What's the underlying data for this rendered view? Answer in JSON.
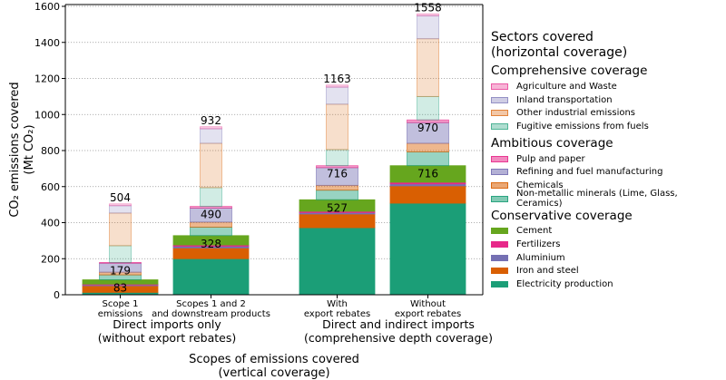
{
  "chart_data": {
    "type": "bar",
    "subtype": "stacked-nested",
    "ylabel_line1": "CO₂ emissions covered",
    "ylabel_line2": "(Mt CO₂)",
    "xlabel_line1": "Scopes of emissions covered",
    "xlabel_line2": "(vertical coverage)",
    "ylim": [
      0,
      1600
    ],
    "yticks": [
      0,
      200,
      400,
      600,
      800,
      1000,
      1200,
      1400,
      1600
    ],
    "grid": "horizontal-dotted",
    "categories": [
      {
        "line1": "Scope 1",
        "line2": "emissions"
      },
      {
        "line1": "Scopes 1 and 2",
        "line2": "and downstream products"
      },
      {
        "line1": "With",
        "line2": "export rebates"
      },
      {
        "line1": "Without",
        "line2": "export rebates"
      }
    ],
    "groups": [
      {
        "line1": "Direct imports only",
        "line2": "(without export rebates)"
      },
      {
        "line1": "Direct and indirect imports",
        "line2": "(comprehensive depth coverage)"
      }
    ],
    "coverage_levels": [
      {
        "name": "Conservative coverage",
        "totals": [
          83,
          328,
          527,
          716
        ],
        "series": [
          {
            "name": "Electricity production",
            "color": "#1b9e77",
            "values": [
              13,
              200,
              372,
              508
            ]
          },
          {
            "name": "Iron and steel",
            "color": "#d95f02",
            "values": [
              37,
              60,
              76,
              96
            ]
          },
          {
            "name": "Aluminium",
            "color": "#7570b3",
            "values": [
              5,
              9,
              8,
              11
            ]
          },
          {
            "name": "Fertilizers",
            "color": "#e7298a",
            "values": [
              4,
              7,
              7,
              9
            ]
          },
          {
            "name": "Cement",
            "color": "#66a61e",
            "values": [
              24,
              52,
              64,
              92
            ]
          }
        ]
      },
      {
        "name": "Ambitious coverage",
        "totals": [
          179,
          490,
          716,
          970
        ],
        "series": [
          {
            "name": "Non-metallic minerals (Lime, Glass, Ceramics)",
            "color": "#1b9e77",
            "values": [
              27,
              47,
              53,
              76
            ]
          },
          {
            "name": "Chemicals",
            "color": "#d95f02",
            "values": [
              15,
              28,
              27,
              48
            ]
          },
          {
            "name": "Refining and fuel manufacturing",
            "color": "#7570b3",
            "values": [
              50,
              78,
              98,
              115
            ]
          },
          {
            "name": "Pulp and paper",
            "color": "#e7298a",
            "values": [
              4,
              9,
              11,
              15
            ]
          }
        ]
      },
      {
        "name": "Comprehensive coverage",
        "totals": [
          504,
          932,
          1163,
          1558
        ],
        "series": [
          {
            "name": "Fugitive emissions from fuels",
            "color": "#1b9e77",
            "values": [
              93,
              104,
              89,
              130
            ]
          },
          {
            "name": "Other industrial emissions",
            "color": "#d95f02",
            "values": [
              181,
              246,
              252,
              320
            ]
          },
          {
            "name": "Inland transportation",
            "color": "#7570b3",
            "values": [
              41,
              81,
              95,
              128
            ]
          },
          {
            "name": "Agriculture and Waste",
            "color": "#e7298a",
            "values": [
              10,
              11,
              11,
              10
            ]
          }
        ]
      }
    ]
  },
  "legend": {
    "title_line1": "Sectors covered",
    "title_line2": "(horizontal coverage)",
    "groups": [
      {
        "title": "Comprehensive coverage",
        "items": [
          {
            "label": "Agriculture and Waste",
            "color": "#e7298a"
          },
          {
            "label": "Inland transportation",
            "color": "#7570b3"
          },
          {
            "label": "Other industrial emissions",
            "color": "#d95f02"
          },
          {
            "label": "Fugitive emissions from fuels",
            "color": "#1b9e77"
          }
        ]
      },
      {
        "title": "Ambitious coverage",
        "items": [
          {
            "label": "Pulp and paper",
            "color": "#e7298a"
          },
          {
            "label": "Refining and fuel manufacturing",
            "color": "#7570b3"
          },
          {
            "label": "Chemicals",
            "color": "#d95f02"
          },
          {
            "label": "Non-metallic minerals (Lime, Glass, Ceramics)",
            "color": "#1b9e77"
          }
        ]
      },
      {
        "title": "Conservative coverage",
        "items": [
          {
            "label": "Cement",
            "color": "#66a61e"
          },
          {
            "label": "Fertilizers",
            "color": "#e7298a"
          },
          {
            "label": "Aluminium",
            "color": "#7570b3"
          },
          {
            "label": "Iron and steel",
            "color": "#d95f02"
          },
          {
            "label": "Electricity production",
            "color": "#1b9e77"
          }
        ]
      }
    ]
  }
}
